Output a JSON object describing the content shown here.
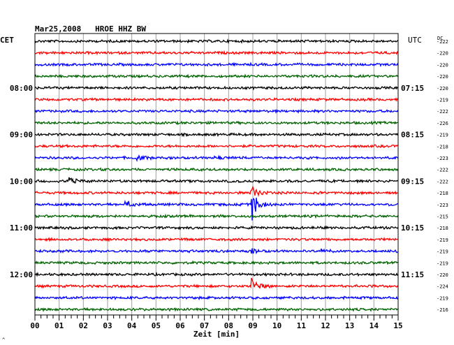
{
  "chart_data": {
    "type": "line",
    "title": "Mar25,2008   HROE HHZ BW",
    "left_axis_label": "CET",
    "right_axis_label": "UTC",
    "dc_label": "DC",
    "xlabel": "Zeit [min]",
    "xlim": [
      0,
      15
    ],
    "x_tick_labels": [
      "00",
      "01",
      "02",
      "03",
      "04",
      "05",
      "06",
      "07",
      "08",
      "09",
      "10",
      "11",
      "12",
      "13",
      "14",
      "15"
    ],
    "trace_count": 24,
    "trace_colors": [
      "#000000",
      "#ff0000",
      "#0000ff",
      "#006400"
    ],
    "left_time_labels": [
      {
        "trace": 4,
        "label": "08:00"
      },
      {
        "trace": 8,
        "label": "09:00"
      },
      {
        "trace": 12,
        "label": "10:00"
      },
      {
        "trace": 16,
        "label": "11:00"
      },
      {
        "trace": 20,
        "label": "12:00"
      }
    ],
    "right_time_labels": [
      {
        "trace": 4,
        "label": "07:15"
      },
      {
        "trace": 8,
        "label": "08:15"
      },
      {
        "trace": 12,
        "label": "09:15"
      },
      {
        "trace": 16,
        "label": "10:15"
      },
      {
        "trace": 20,
        "label": "11:15"
      }
    ],
    "dc_offsets": [
      -222,
      -220,
      -220,
      -220,
      -220,
      -219,
      -222,
      -226,
      -219,
      -218,
      -223,
      -222,
      -222,
      -218,
      -223,
      -215,
      -218,
      -219,
      -219,
      -219,
      -220,
      -224,
      -219,
      -216
    ],
    "events": [
      {
        "trace": 14,
        "minute": 8.9,
        "strength": 1.0
      },
      {
        "trace": 13,
        "minute": 8.9,
        "strength": 0.45
      },
      {
        "trace": 21,
        "minute": 8.9,
        "strength": 0.5
      },
      {
        "trace": 14,
        "minute": 3.7,
        "strength": 0.25
      },
      {
        "trace": 12,
        "minute": 1.4,
        "strength": 0.22
      },
      {
        "trace": 10,
        "minute": 4.2,
        "strength": 0.15
      },
      {
        "trace": 10,
        "minute": 7.4,
        "strength": 0.12
      },
      {
        "trace": 18,
        "minute": 8.9,
        "strength": 0.18
      },
      {
        "trace": 18,
        "minute": 11.8,
        "strength": 0.14
      }
    ]
  },
  "corner_mark": "^"
}
